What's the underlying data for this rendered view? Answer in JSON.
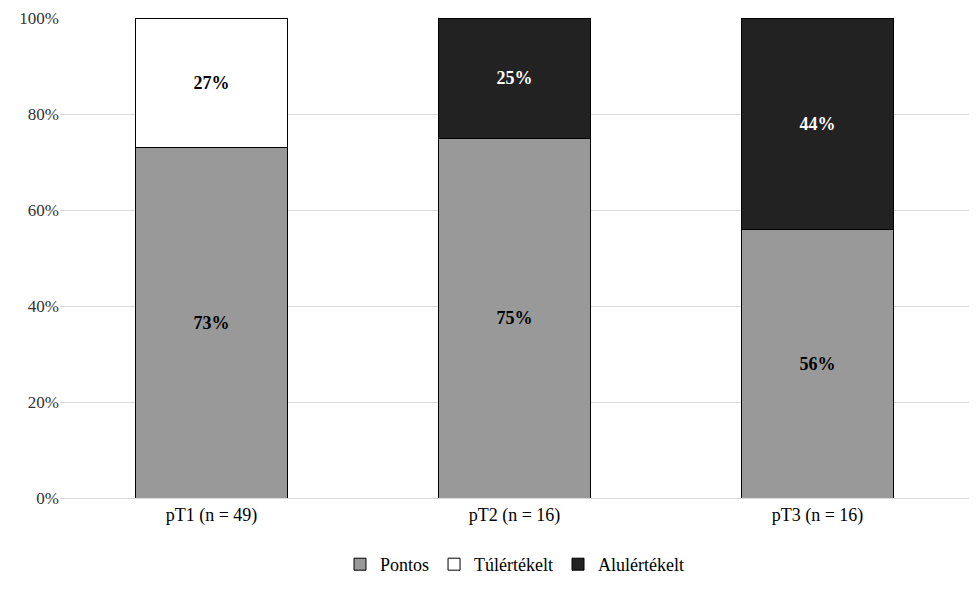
{
  "chart_data": {
    "type": "bar",
    "stacked": true,
    "data_labels": true,
    "grid": true,
    "legend": "bottom",
    "categories": [
      "pT1 (n = 49)",
      "pT2 (n = 16)",
      "pT3 (n = 16)"
    ],
    "series": [
      {
        "name": "Pontos",
        "color": "#999999",
        "values": [
          73,
          75,
          56
        ],
        "value_labels": [
          "73%",
          "75%",
          "56%"
        ]
      },
      {
        "name": "Túlértékelt",
        "color": "#ffffff",
        "values": [
          27,
          null,
          null
        ],
        "value_labels": [
          "27%",
          null,
          null
        ]
      },
      {
        "name": "Alulértékelt",
        "color": "#222222",
        "values": [
          null,
          25,
          44
        ],
        "value_labels": [
          null,
          "25%",
          "44%"
        ]
      }
    ],
    "ylim": [
      0,
      100
    ],
    "yticks": [
      {
        "value": 0,
        "label": "0%"
      },
      {
        "value": 20,
        "label": "20%"
      },
      {
        "value": 40,
        "label": "40%"
      },
      {
        "value": 60,
        "label": "60%"
      },
      {
        "value": 80,
        "label": "80%"
      },
      {
        "value": 100,
        "label": "100%"
      }
    ]
  }
}
